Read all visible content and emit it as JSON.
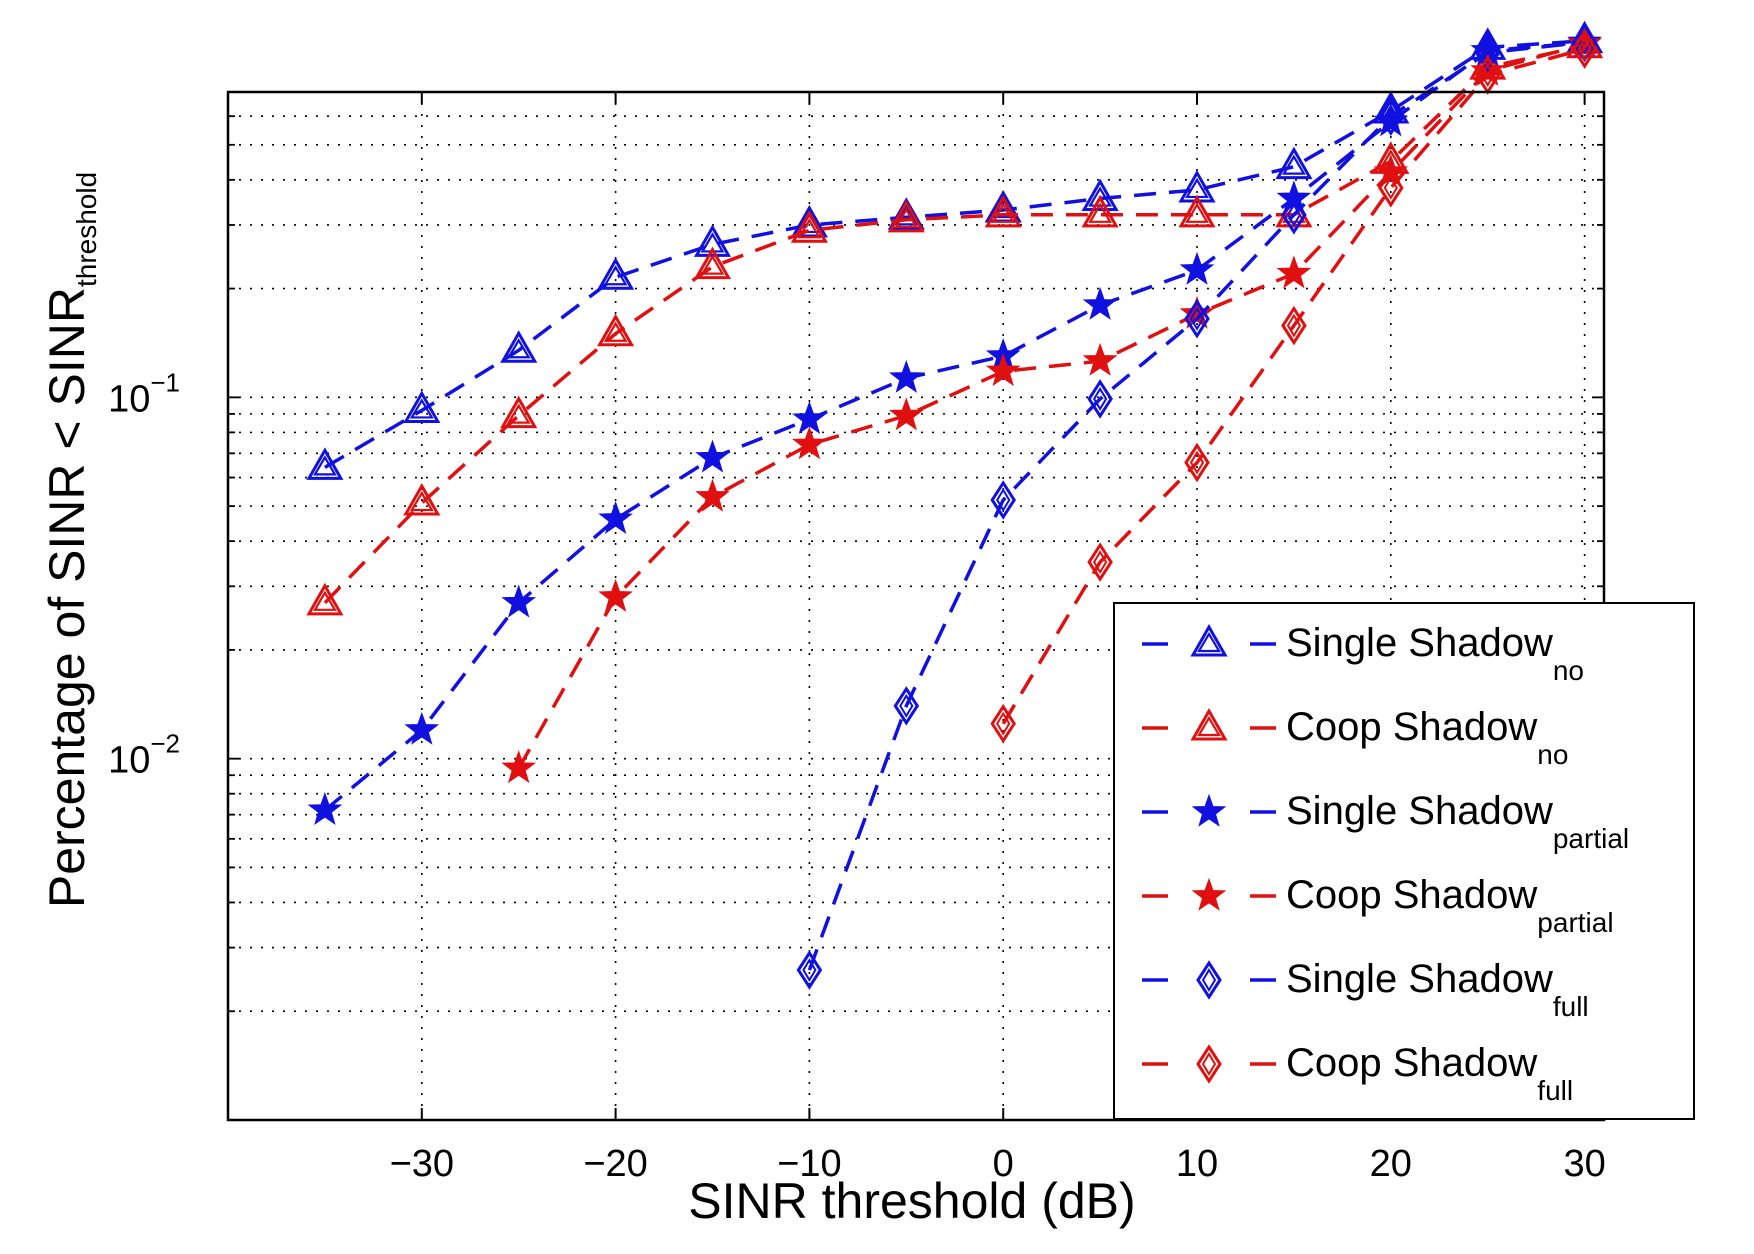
{
  "chart_data": {
    "type": "line",
    "xlabel": "SINR threshold (dB)",
    "ylabel_main": "Percentage of SINR < SINR",
    "ylabel_sub": "threshold",
    "xlim": [
      -40,
      31
    ],
    "ylim": [
      0.001,
      0.7
    ],
    "yscale": "log",
    "xticks": [
      -30,
      -20,
      -10,
      0,
      10,
      20,
      30
    ],
    "xtick_labels": [
      "−30",
      "−20",
      "−10",
      "0",
      "10",
      "20",
      "30"
    ],
    "yticks": [
      {
        "base": "10",
        "exp": "−2",
        "value": 0.01
      },
      {
        "base": "10",
        "exp": "−1",
        "value": 0.1
      }
    ],
    "grid": true,
    "legend_position": "bottom-right",
    "series": [
      {
        "name": "Single Shadow",
        "sub": "no",
        "color": "#1010e0",
        "marker": "triangle",
        "x": [
          -35,
          -30,
          -25,
          -20,
          -15,
          -10,
          -5,
          0,
          5,
          10,
          15,
          20,
          25,
          30
        ],
        "y": [
          0.064,
          0.092,
          0.135,
          0.215,
          0.265,
          0.3,
          0.315,
          0.33,
          0.355,
          0.375,
          0.435,
          0.62,
          0.93,
          0.97
        ]
      },
      {
        "name": "Coop Shadow",
        "sub": "no",
        "color": "#e01010",
        "marker": "triangle",
        "x": [
          -35,
          -30,
          -25,
          -20,
          -15,
          -10,
          -5,
          0,
          5,
          10,
          15,
          20,
          25,
          30
        ],
        "y": [
          0.027,
          0.051,
          0.089,
          0.15,
          0.23,
          0.29,
          0.31,
          0.32,
          0.32,
          0.32,
          0.32,
          0.45,
          0.82,
          0.94
        ]
      },
      {
        "name": "Single Shadow",
        "sub": "partial",
        "color": "#1010e0",
        "marker": "star",
        "x": [
          -35,
          -30,
          -25,
          -20,
          -15,
          -10,
          -5,
          0,
          5,
          10,
          15,
          20,
          25,
          30
        ],
        "y": [
          0.0072,
          0.012,
          0.027,
          0.046,
          0.068,
          0.087,
          0.113,
          0.13,
          0.18,
          0.225,
          0.355,
          0.58,
          0.91,
          0.96
        ]
      },
      {
        "name": "Coop Shadow",
        "sub": "partial",
        "color": "#e01010",
        "marker": "star",
        "x": [
          -25,
          -20,
          -15,
          -10,
          -5,
          0,
          5,
          10,
          15,
          20,
          25,
          30
        ],
        "y": [
          0.0094,
          0.028,
          0.053,
          0.074,
          0.089,
          0.118,
          0.126,
          0.17,
          0.22,
          0.42,
          0.8,
          0.95
        ]
      },
      {
        "name": "Single Shadow",
        "sub": "full",
        "color": "#1010e0",
        "marker": "diamond",
        "x": [
          -10,
          -5,
          0,
          5,
          10,
          15,
          20,
          25,
          30
        ],
        "y": [
          0.0026,
          0.014,
          0.052,
          0.099,
          0.165,
          0.32,
          0.6,
          0.9,
          0.96
        ]
      },
      {
        "name": "Coop Shadow",
        "sub": "full",
        "color": "#e01010",
        "marker": "diamond",
        "x": [
          0,
          5,
          10,
          15,
          20,
          25,
          30
        ],
        "y": [
          0.0125,
          0.035,
          0.066,
          0.158,
          0.38,
          0.78,
          0.92
        ]
      }
    ]
  }
}
